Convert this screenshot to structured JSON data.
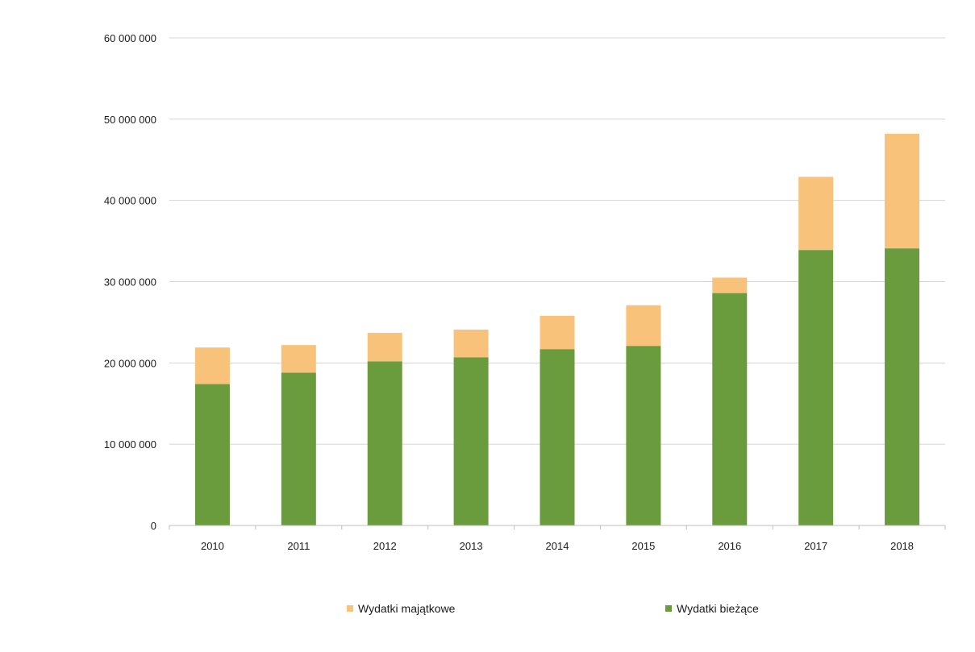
{
  "chart_data": {
    "type": "bar",
    "stacked": true,
    "categories": [
      "2010",
      "2011",
      "2012",
      "2013",
      "2014",
      "2015",
      "2016",
      "2017",
      "2018"
    ],
    "series": [
      {
        "name": "Wydatki bieżące",
        "color": "#6a9b3c",
        "values": [
          17400000,
          18800000,
          20200000,
          20700000,
          21700000,
          22100000,
          28600000,
          33900000,
          34100000
        ]
      },
      {
        "name": "Wydatki majątkowe",
        "color": "#f9c27a",
        "values": [
          4500000,
          3400000,
          3500000,
          3400000,
          4100000,
          5000000,
          1900000,
          9000000,
          14100000
        ]
      }
    ],
    "y_ticks": [
      "0",
      "10 000 000",
      "20 000 000",
      "30 000 000",
      "40 000 000",
      "50 000 000",
      "60 000 000"
    ],
    "ylim": [
      0,
      60000000
    ],
    "grid": true,
    "legend": {
      "position": "bottom",
      "entries": [
        "Wydatki majątkowe",
        "Wydatki bieżące"
      ]
    }
  }
}
